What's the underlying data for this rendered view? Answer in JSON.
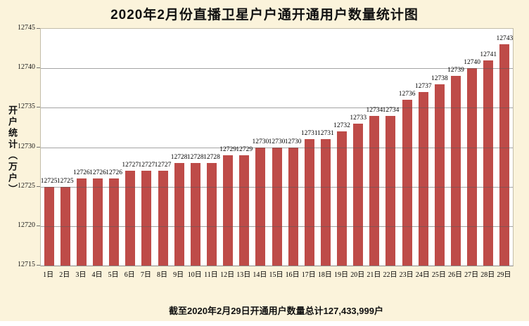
{
  "title": "2020年2月份直播卫星户户通开通用户数量统计图",
  "y_axis_title": "开户统计（万户）",
  "footer": "截至2020年2月29日开通用户数量总计127,433,999户",
  "colors": {
    "background": "#FBF3DB",
    "plot_background": "#FFFFFF",
    "bar": "#BE4B48",
    "gridline": "#5A5A5A",
    "text": "#111111"
  },
  "chart_data": {
    "type": "bar",
    "title": "2020年2月份直播卫星户户通开通用户数量统计图",
    "xlabel": "",
    "ylabel": "开户统计（万户）",
    "categories": [
      "1日",
      "2日",
      "3日",
      "4日",
      "5日",
      "6日",
      "7日",
      "8日",
      "9日",
      "10日",
      "11日",
      "12日",
      "13日",
      "14日",
      "15日",
      "16日",
      "17日",
      "18日",
      "19日",
      "20日",
      "21日",
      "22日",
      "23日",
      "24日",
      "25日",
      "26日",
      "27日",
      "28日",
      "29日"
    ],
    "values": [
      12725,
      12725,
      12726,
      12726,
      12726,
      12727,
      12727,
      12727,
      12728,
      12728,
      12728,
      12729,
      12729,
      12730,
      12730,
      12730,
      12731,
      12731,
      12732,
      12733,
      12734,
      12734,
      12736,
      12737,
      12738,
      12739,
      12740,
      12741,
      12743
    ],
    "ylim": [
      12715,
      12745
    ],
    "ytick_step": 5,
    "grid": true,
    "data_labels": true,
    "legend": "none",
    "annotation": "截至2020年2月29日开通用户数量总计127,433,999户"
  }
}
